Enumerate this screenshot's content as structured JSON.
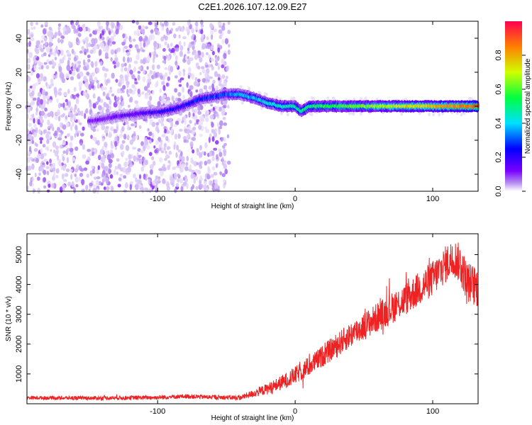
{
  "chart_data": [
    {
      "type": "heatmap",
      "title": "C2E1.2026.107.12.09.E27",
      "xlabel": "Height of straight line (km)",
      "ylabel": "Frequency (Hz)",
      "xlim": [
        -195,
        133
      ],
      "ylim": [
        -50,
        50
      ],
      "xticks": [
        -100,
        0,
        100
      ],
      "xtick_labels": [
        "-100",
        "0",
        "100"
      ],
      "yticks": [
        -40,
        -20,
        0,
        20,
        40
      ],
      "ytick_labels": [
        "-40",
        "-20",
        "0",
        "20",
        "40"
      ],
      "colorbar": {
        "label": "Normalized spectral amplitude",
        "range": [
          0,
          1
        ],
        "ticks": [
          0.0,
          0.2,
          0.4,
          0.6,
          0.8
        ],
        "tick_labels": [
          "0.0",
          "0.2",
          "0.4",
          "0.6",
          "0.8"
        ],
        "colors": [
          "#ffffff",
          "#b48cf0",
          "#7a00ff",
          "#0000ff",
          "#00e0ff",
          "#00ff40",
          "#d0ff00",
          "#ff8000",
          "#ff0050"
        ]
      },
      "noise_region_x": [
        -195,
        -48
      ],
      "ridge": {
        "x": [
          -150,
          -130,
          -110,
          -95,
          -85,
          -75,
          -70,
          -50,
          -40,
          -30,
          -20,
          -10,
          0,
          3,
          5,
          10,
          20,
          40,
          60,
          80,
          100,
          120,
          133
        ],
        "y": [
          -9,
          -6,
          -4,
          -3,
          -1,
          2,
          4,
          7,
          7,
          5,
          2,
          0,
          0,
          -2,
          -3,
          0,
          0,
          0,
          0,
          0,
          0,
          0,
          0
        ]
      }
    },
    {
      "type": "line",
      "xlabel": "Height of straight line (km)",
      "ylabel": "SNR (10 * v/v)",
      "xlim": [
        -195,
        133
      ],
      "ylim": [
        0,
        5700
      ],
      "xticks": [
        -100,
        0,
        100
      ],
      "xtick_labels": [
        "-100",
        "0",
        "100"
      ],
      "yticks": [
        1000,
        2000,
        3000,
        4000,
        5000
      ],
      "ytick_labels": [
        "1000",
        "2000",
        "3000",
        "4000",
        "5000"
      ],
      "color": "#ee2222",
      "trend": {
        "x": [
          -195,
          -150,
          -100,
          -80,
          -60,
          -40,
          -30,
          -20,
          -10,
          0,
          10,
          20,
          40,
          60,
          80,
          100,
          110,
          115,
          120,
          125,
          133
        ],
        "y": [
          200,
          190,
          210,
          250,
          220,
          200,
          350,
          500,
          700,
          950,
          1250,
          1600,
          2300,
          2900,
          3500,
          4200,
          4700,
          4900,
          4700,
          4100,
          3900
        ]
      },
      "noise_amplitude": {
        "x": [
          -195,
          -40,
          0,
          60,
          133
        ],
        "y": [
          60,
          80,
          300,
          500,
          700
        ]
      }
    }
  ]
}
